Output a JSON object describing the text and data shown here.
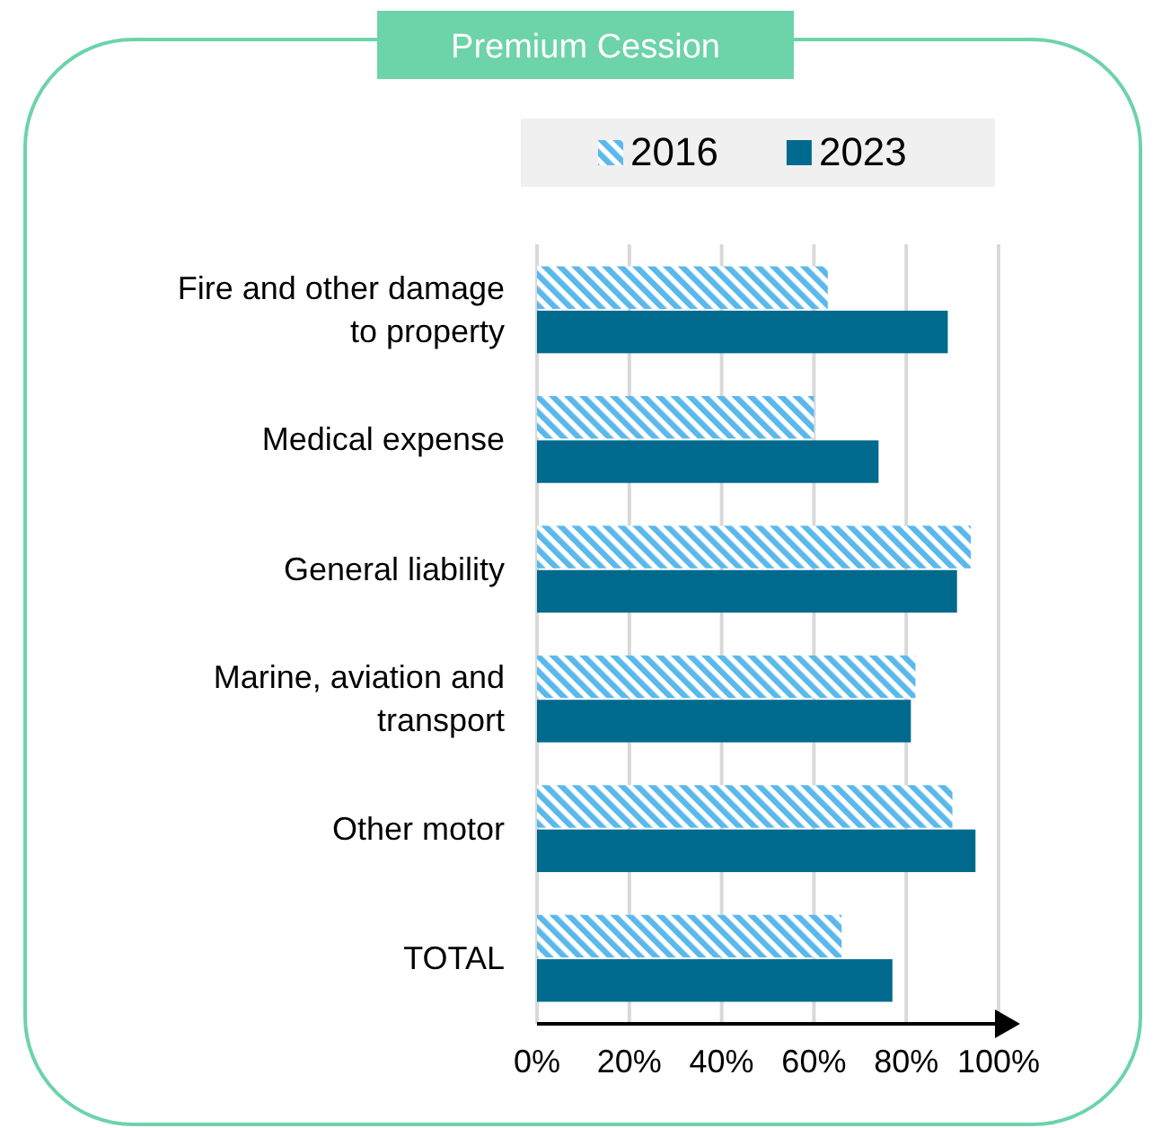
{
  "chart_data": {
    "type": "bar",
    "orientation": "horizontal",
    "title": "Premium Cession",
    "categories": [
      "Fire and other damage to property",
      "Medical expense",
      "General liability",
      "Marine, aviation and transport",
      "Other motor",
      "TOTAL"
    ],
    "series": [
      {
        "name": "2016",
        "color": "#5bb8ea",
        "values": [
          63,
          60,
          94,
          82,
          90,
          66
        ]
      },
      {
        "name": "2023",
        "color": "#006a8e",
        "values": [
          89,
          74,
          91,
          81,
          95,
          77
        ]
      }
    ],
    "xlim": [
      0,
      100
    ],
    "xticks": [
      {
        "value": 0,
        "label": "0%"
      },
      {
        "value": 20,
        "label": "20%"
      },
      {
        "value": 40,
        "label": "40%"
      },
      {
        "value": 60,
        "label": "60%"
      },
      {
        "value": 80,
        "label": "80%"
      },
      {
        "value": 100,
        "label": "100%"
      }
    ],
    "grid": "x",
    "legend": "top"
  }
}
